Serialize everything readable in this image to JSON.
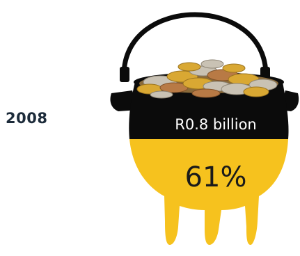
{
  "year_label": "2008",
  "pot": {
    "amount_label": "R0.8 billion",
    "percent_label": "61%",
    "fill_fraction": 0.61
  },
  "colors": {
    "pot_black": "#0b0b0b",
    "pot_yellow": "#f6c21e",
    "year_text": "#1c2b3a",
    "coin_gold": "#d9a833",
    "coin_silver": "#c9c2b4",
    "coin_bronze": "#b87a45"
  },
  "icons": [
    "coin-pot-icon"
  ]
}
